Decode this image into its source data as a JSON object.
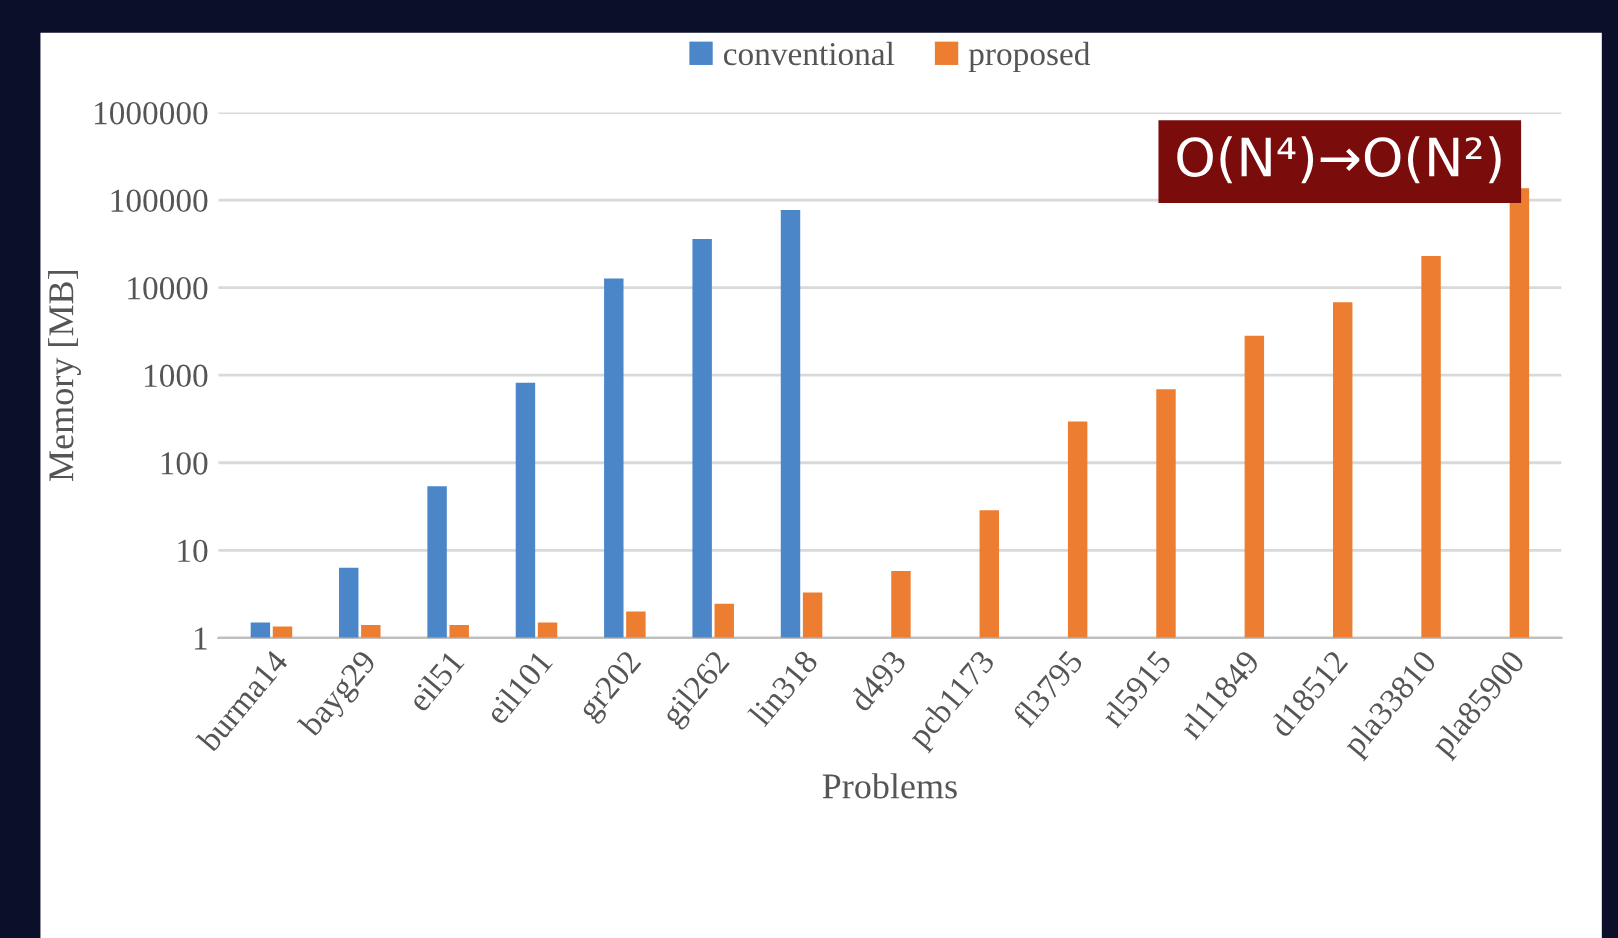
{
  "chart_data": {
    "type": "bar",
    "ylabel": "Memory [MB]",
    "xlabel": "Problems",
    "categories": [
      "burma14",
      "bayg29",
      "eil51",
      "eil101",
      "gr202",
      "gil262",
      "lin318",
      "d493",
      "pcb1173",
      "fl3795",
      "rl5915",
      "rl11849",
      "d18512",
      "pla33810",
      "pla85900"
    ],
    "series": [
      {
        "name": "conventional",
        "color": "#4a86c8",
        "values": [
          1.5,
          6.3,
          54,
          820,
          12700,
          36000,
          77000,
          null,
          null,
          null,
          null,
          null,
          null,
          null,
          null
        ]
      },
      {
        "name": "proposed",
        "color": "#ed7d31",
        "values": [
          1.35,
          1.4,
          1.4,
          1.5,
          2.0,
          2.45,
          3.3,
          5.8,
          28.6,
          295,
          690,
          2830,
          6800,
          23000,
          137000
        ]
      }
    ],
    "log": true,
    "ylim": [
      1,
      1000000
    ],
    "yticks": [
      1,
      10,
      100,
      1000,
      10000,
      100000,
      1000000
    ],
    "grid": "y",
    "legend": "top",
    "annotations": [
      "O(N⁴)→O(N²)"
    ]
  }
}
